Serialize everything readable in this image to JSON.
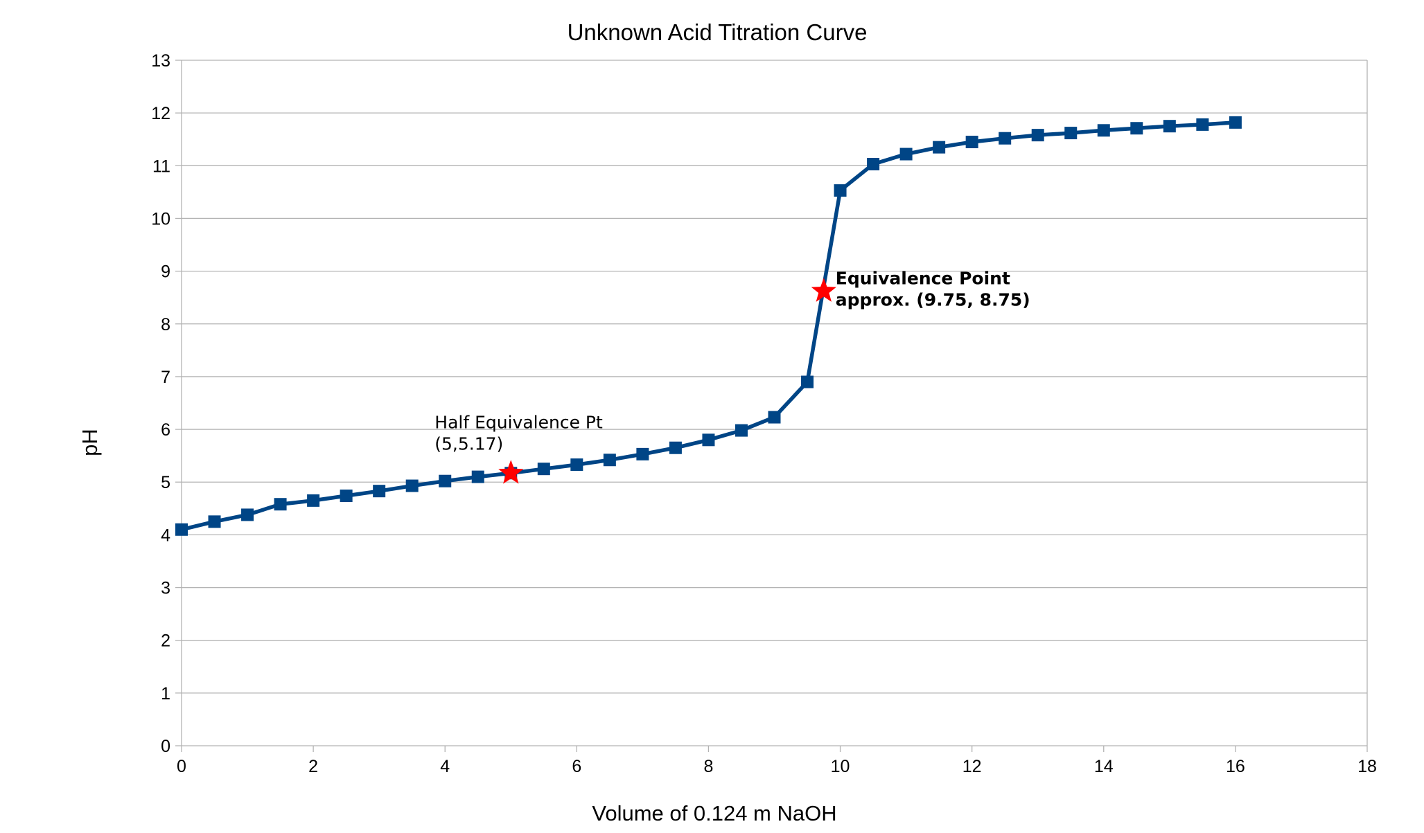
{
  "chart_data": {
    "type": "line",
    "title": "Unknown Acid Titration Curve",
    "xlabel": "Volume of 0.124 m NaOH",
    "ylabel": "pH",
    "xlim": [
      0,
      18
    ],
    "ylim": [
      0,
      13
    ],
    "xticks": [
      0,
      2,
      4,
      6,
      8,
      10,
      12,
      14,
      16,
      18
    ],
    "yticks": [
      0,
      1,
      2,
      3,
      4,
      5,
      6,
      7,
      8,
      9,
      10,
      11,
      12,
      13
    ],
    "grid": "horizontal",
    "legend": "none",
    "series": [
      {
        "color": "#004586",
        "marker": "square",
        "x": [
          0,
          0.5,
          1,
          1.5,
          2,
          2.5,
          3,
          3.5,
          4,
          4.5,
          5,
          5.5,
          6,
          6.5,
          7,
          7.5,
          8,
          8.5,
          9,
          9.5,
          10,
          10.5,
          11,
          11.5,
          12,
          12.5,
          13,
          13.5,
          14,
          14.5,
          15,
          15.5,
          16
        ],
        "y": [
          4.1,
          4.25,
          4.38,
          4.58,
          4.65,
          4.74,
          4.83,
          4.93,
          5.02,
          5.1,
          5.17,
          5.25,
          5.33,
          5.42,
          5.53,
          5.65,
          5.8,
          5.98,
          6.23,
          6.9,
          10.53,
          11.03,
          11.22,
          11.35,
          11.45,
          11.52,
          11.58,
          11.62,
          11.67,
          11.71,
          11.75,
          11.78,
          11.82
        ]
      }
    ],
    "annotations": [
      {
        "lines": [
          "Half Equivalence Pt",
          "(5,5.17)"
        ],
        "x": 5,
        "y": 5.17,
        "marker": "star",
        "marker_color": "#ff0000",
        "bold": false
      },
      {
        "lines": [
          "Equivalence Point",
          "approx. (9.75, 8.75)"
        ],
        "x": 9.75,
        "y": 8.62,
        "marker": "star",
        "marker_color": "#ff0000",
        "bold": true
      }
    ]
  },
  "colors": {
    "grid": "#b3b3b3",
    "axis": "#b3b3b3",
    "series": "#004586",
    "star": "#ff0000"
  }
}
